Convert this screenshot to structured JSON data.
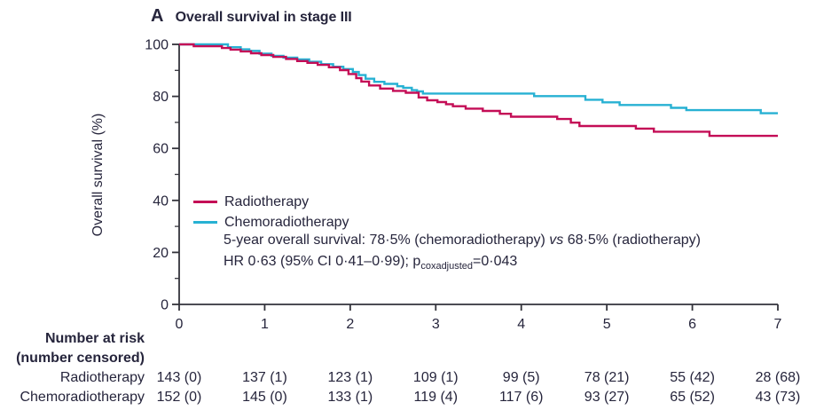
{
  "figure": {
    "panel_label": "A",
    "title": "Overall survival in stage III"
  },
  "y_axis_label": "Overall survival (%)",
  "colors": {
    "radiotherapy": "#c40d56",
    "chemoradiotherapy": "#27b1d3",
    "text": "#26253c",
    "axis": "#33333b"
  },
  "legend": {
    "items": [
      {
        "label": "Radiotherapy",
        "color": "#c40d56"
      },
      {
        "label": "Chemoradiotherapy",
        "color": "#27b1d3"
      }
    ]
  },
  "annotation": {
    "line1_pre": "5-year overall survival: 78·5% (chemoradiotherapy) ",
    "line1_vs": "vs",
    "line1_post": " 68·5% (radiotherapy)",
    "line2_pre": "HR 0·63 (95% CI 0·41–0·99); p",
    "line2_sub": "coxadjusted",
    "line2_post": "=0·043"
  },
  "risk_table": {
    "header_line1": "Number at risk",
    "header_line2": "(number censored)",
    "rows": [
      {
        "label": "Radiotherapy",
        "values": [
          "143 (0)",
          "137 (1)",
          "123 (1)",
          "109 (1)",
          "99 (5)",
          "78 (21)",
          "55 (42)",
          "28 (68)"
        ]
      },
      {
        "label": "Chemoradiotherapy",
        "values": [
          "152 (0)",
          "145 (0)",
          "133 (1)",
          "119 (4)",
          "117 (6)",
          "93 (27)",
          "65 (52)",
          "43 (73)"
        ]
      }
    ]
  },
  "chart_data": {
    "type": "line",
    "subtype": "kaplan-meier-step",
    "title": "Overall survival in stage III",
    "xlabel": "",
    "ylabel": "Overall survival (%)",
    "x_axis": {
      "range": [
        0,
        7
      ],
      "ticks": [
        0,
        1,
        2,
        3,
        4,
        5,
        6,
        7
      ]
    },
    "y_axis": {
      "range": [
        0,
        100
      ],
      "ticks": [
        0,
        20,
        40,
        60,
        80,
        100
      ],
      "minor_ticks": [
        10,
        30,
        50,
        70,
        90
      ]
    },
    "grid": false,
    "legend_position": "inside-left",
    "series": [
      {
        "name": "Radiotherapy",
        "color": "#c40d56",
        "points": [
          [
            0,
            100
          ],
          [
            0.17,
            99.3
          ],
          [
            0.5,
            98.6
          ],
          [
            0.6,
            98.0
          ],
          [
            0.72,
            97.3
          ],
          [
            0.84,
            96.6
          ],
          [
            0.96,
            95.9
          ],
          [
            1.1,
            95.2
          ],
          [
            1.25,
            94.4
          ],
          [
            1.38,
            93.6
          ],
          [
            1.5,
            92.9
          ],
          [
            1.62,
            92.1
          ],
          [
            1.75,
            91.2
          ],
          [
            1.88,
            90.1
          ],
          [
            1.98,
            88.6
          ],
          [
            2.07,
            87.0
          ],
          [
            2.13,
            85.7
          ],
          [
            2.22,
            84.2
          ],
          [
            2.35,
            83.0
          ],
          [
            2.5,
            82.1
          ],
          [
            2.65,
            81.4
          ],
          [
            2.8,
            79.6
          ],
          [
            2.9,
            78.5
          ],
          [
            3.02,
            77.8
          ],
          [
            3.12,
            77.0
          ],
          [
            3.2,
            76.2
          ],
          [
            3.35,
            75.3
          ],
          [
            3.55,
            74.4
          ],
          [
            3.75,
            73.3
          ],
          [
            3.88,
            72.2
          ],
          [
            4.42,
            71.3
          ],
          [
            4.58,
            69.9
          ],
          [
            4.68,
            68.6
          ],
          [
            5.34,
            67.6
          ],
          [
            5.55,
            66.4
          ],
          [
            6.2,
            64.8
          ],
          [
            7,
            64.8
          ]
        ]
      },
      {
        "name": "Chemoradiotherapy",
        "color": "#27b1d3",
        "points": [
          [
            0,
            100
          ],
          [
            0.57,
            98.9
          ],
          [
            0.72,
            98.1
          ],
          [
            0.82,
            97.5
          ],
          [
            0.94,
            96.4
          ],
          [
            1.08,
            95.6
          ],
          [
            1.22,
            94.9
          ],
          [
            1.38,
            94.2
          ],
          [
            1.52,
            93.3
          ],
          [
            1.66,
            92.4
          ],
          [
            1.8,
            91.4
          ],
          [
            1.92,
            90.5
          ],
          [
            2.03,
            89.4
          ],
          [
            2.1,
            88.2
          ],
          [
            2.18,
            86.8
          ],
          [
            2.28,
            85.6
          ],
          [
            2.4,
            84.8
          ],
          [
            2.55,
            83.9
          ],
          [
            2.62,
            83.3
          ],
          [
            2.72,
            82.4
          ],
          [
            2.78,
            81.9
          ],
          [
            2.85,
            81.1
          ],
          [
            4.15,
            80.1
          ],
          [
            4.75,
            78.7
          ],
          [
            4.95,
            77.7
          ],
          [
            5.15,
            76.7
          ],
          [
            5.75,
            75.6
          ],
          [
            5.93,
            74.7
          ],
          [
            6.8,
            73.5
          ],
          [
            7,
            73.5
          ]
        ]
      }
    ]
  }
}
